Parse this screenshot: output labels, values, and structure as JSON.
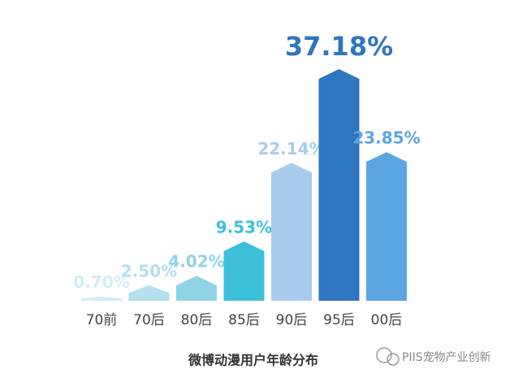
{
  "chart_data": {
    "type": "bar",
    "title": "微博动漫用户年龄分布",
    "categories": [
      "70前",
      "70后",
      "80后",
      "85后",
      "90后",
      "95后",
      "00后"
    ],
    "values": [
      0.7,
      2.5,
      4.02,
      9.53,
      22.14,
      37.18,
      23.85
    ],
    "value_labels": [
      "0.70%",
      "2.50%",
      "4.02%",
      "9.53%",
      "22.14%",
      "37.18%",
      "23.85%"
    ],
    "colors": [
      "#d3ecf3",
      "#b3e0ec",
      "#8fd4e6",
      "#3cc0da",
      "#a8cceb",
      "#2e76bf",
      "#5ba6e2"
    ],
    "watermark": "PIIS宠物产业创新"
  }
}
